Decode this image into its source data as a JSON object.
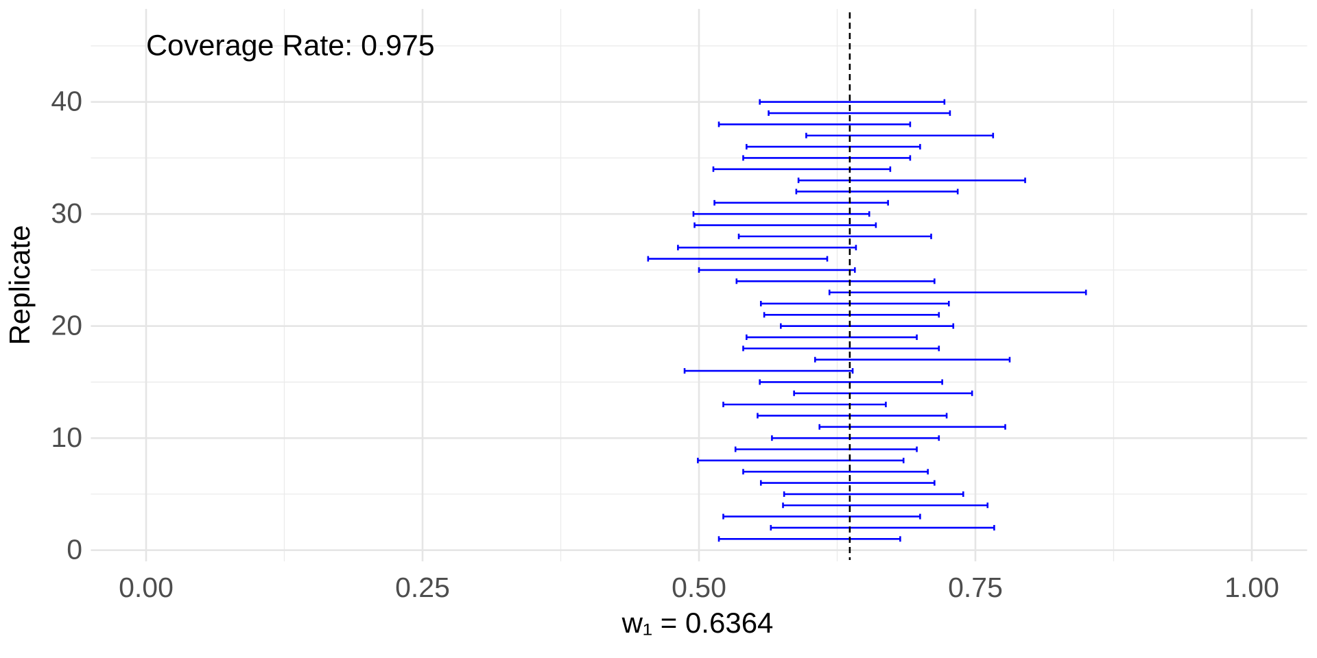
{
  "chart_data": {
    "type": "interval",
    "annotation": "Coverage Rate: 0.975",
    "x_label": "w₁ = 0.6364",
    "y_label": "Replicate",
    "color": "#0000ff",
    "reference_line": 0.6364,
    "replicate": [
      1,
      2,
      3,
      4,
      5,
      6,
      7,
      8,
      9,
      10,
      11,
      12,
      13,
      14,
      15,
      16,
      17,
      18,
      19,
      20,
      21,
      22,
      23,
      24,
      25,
      26,
      27,
      28,
      29,
      30,
      31,
      32,
      33,
      34,
      35,
      36,
      37,
      38,
      39,
      40
    ],
    "lower": [
      0.518,
      0.565,
      0.522,
      0.576,
      0.577,
      0.556,
      0.54,
      0.499,
      0.533,
      0.566,
      0.609,
      0.553,
      0.522,
      0.586,
      0.555,
      0.487,
      0.605,
      0.54,
      0.543,
      0.574,
      0.559,
      0.556,
      0.618,
      0.534,
      0.5,
      0.454,
      0.481,
      0.536,
      0.496,
      0.495,
      0.514,
      0.588,
      0.59,
      0.513,
      0.54,
      0.543,
      0.597,
      0.518,
      0.563,
      0.555
    ],
    "upper": [
      0.682,
      0.767,
      0.7,
      0.761,
      0.739,
      0.713,
      0.707,
      0.685,
      0.697,
      0.717,
      0.777,
      0.724,
      0.669,
      0.747,
      0.72,
      0.639,
      0.781,
      0.717,
      0.697,
      0.73,
      0.717,
      0.726,
      0.85,
      0.713,
      0.641,
      0.616,
      0.642,
      0.71,
      0.66,
      0.654,
      0.671,
      0.734,
      0.795,
      0.673,
      0.691,
      0.7,
      0.766,
      0.691,
      0.727,
      0.722
    ],
    "xlim": [
      -0.05,
      1.05
    ],
    "xticks": [
      {
        "value": 0,
        "label": "0.00"
      },
      {
        "value": 0.25,
        "label": "0.25"
      },
      {
        "value": 0.5,
        "label": "0.50"
      },
      {
        "value": 0.75,
        "label": "0.75"
      },
      {
        "value": 1,
        "label": "1.00"
      }
    ],
    "x_minor_ticks": [
      0.125,
      0.375,
      0.625,
      0.875
    ],
    "ylim": [
      -1,
      48.3
    ],
    "yticks": [
      0,
      10,
      20,
      30,
      40
    ],
    "y_minor_ticks": [
      5,
      15,
      25,
      35,
      45
    ],
    "grid": true
  }
}
